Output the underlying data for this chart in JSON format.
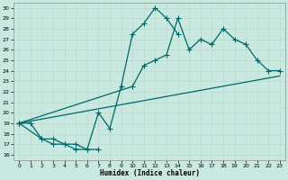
{
  "title": "",
  "xlabel": "Humidex (Indice chaleur)",
  "ylabel": "",
  "bg_color": "#c8e8e0",
  "line_color": "#006868",
  "grid_color": "#d8f0e8",
  "xlim": [
    -0.5,
    23.5
  ],
  "ylim": [
    15.5,
    30.5
  ],
  "yticks": [
    16,
    17,
    18,
    19,
    20,
    21,
    22,
    23,
    24,
    25,
    26,
    27,
    28,
    29,
    30
  ],
  "xticks": [
    0,
    1,
    2,
    3,
    4,
    5,
    6,
    7,
    8,
    9,
    10,
    11,
    12,
    13,
    14,
    15,
    16,
    17,
    18,
    19,
    20,
    21,
    22,
    23
  ],
  "line1_x": [
    0,
    1,
    2,
    3,
    4,
    5,
    6,
    7
  ],
  "line1_y": [
    19.0,
    19.0,
    17.5,
    17.0,
    17.0,
    17.0,
    16.5,
    16.5
  ],
  "line2_x": [
    0,
    2,
    3,
    4,
    5,
    6,
    7,
    8,
    9,
    10,
    11,
    12,
    13,
    14
  ],
  "line2_y": [
    19.0,
    17.5,
    17.5,
    17.0,
    16.5,
    16.5,
    20.0,
    18.5,
    22.5,
    27.5,
    28.5,
    30.0,
    29.0,
    27.5
  ],
  "line3_x": [
    0,
    10,
    11,
    12,
    13,
    14,
    15,
    16,
    17,
    18,
    19,
    20,
    21,
    22,
    23
  ],
  "line3_y": [
    19.0,
    22.5,
    24.5,
    25.0,
    25.5,
    29.0,
    26.0,
    27.0,
    26.5,
    28.0,
    27.0,
    26.5,
    25.0,
    24.0,
    24.0
  ],
  "line4_x": [
    0,
    23
  ],
  "line4_y": [
    19.0,
    23.5
  ],
  "marker_size": 2.5,
  "linewidth": 0.9
}
